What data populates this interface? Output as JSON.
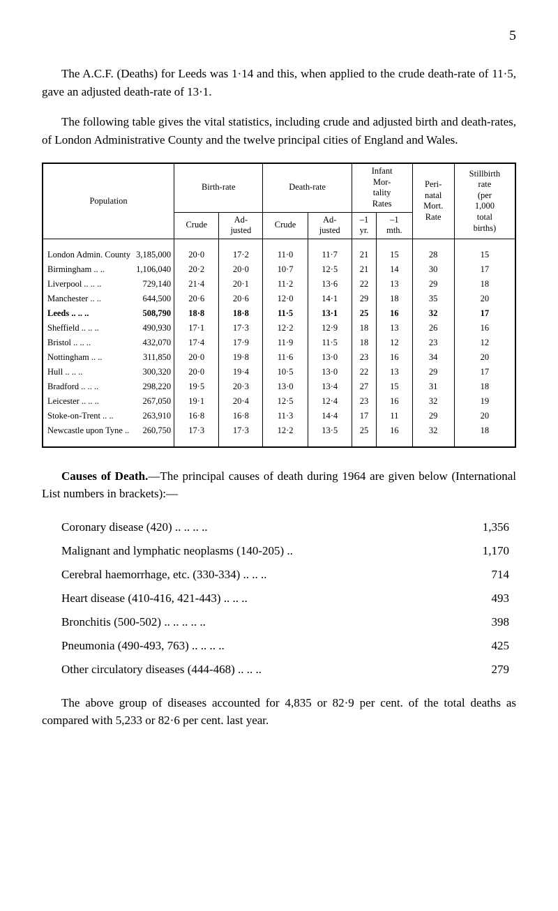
{
  "page_number": "5",
  "para1": "The A.C.F. (Deaths) for Leeds was 1·14 and this, when applied to the crude death-rate of 11·5, gave an adjusted death-rate of 13·1.",
  "para2": "The following table gives the vital statistics, including crude and adjusted birth and death-rates, of London Administrative County and the twelve principal cities of England and Wales.",
  "table": {
    "headers": {
      "population": "Population",
      "birth_rate": "Birth-rate",
      "death_rate": "Death-rate",
      "infant": "Infant\nMor-\ntality\nRates",
      "peri": "Peri-\nnatal\nMort.\nRate",
      "still": "Stillbirth\nrate\n(per\n1,000\ntotal\nbirths)",
      "crude": "Crude",
      "adjusted": "Ad-\njusted",
      "neg1yr": "–1\nyr.",
      "neg1mth": "–1\nmth."
    },
    "rows": [
      {
        "city": "London Admin. County",
        "pop": "3,185,000",
        "bc": "20·0",
        "ba": "17·2",
        "dc": "11·0",
        "da": "11·7",
        "iy": "21",
        "im": "15",
        "pn": "28",
        "sb": "15",
        "bold": false
      },
      {
        "city": "Birmingham   ..  ..",
        "pop": "1,106,040",
        "bc": "20·2",
        "ba": "20·0",
        "dc": "10·7",
        "da": "12·5",
        "iy": "21",
        "im": "14",
        "pn": "30",
        "sb": "17",
        "bold": false
      },
      {
        "city": "Liverpool ..   ..   ..",
        "pop": "729,140",
        "bc": "21·4",
        "ba": "20·1",
        "dc": "11·2",
        "da": "13·6",
        "iy": "22",
        "im": "13",
        "pn": "29",
        "sb": "18",
        "bold": false
      },
      {
        "city": "Manchester    ..   ..",
        "pop": "644,500",
        "bc": "20·6",
        "ba": "20·6",
        "dc": "12·0",
        "da": "14·1",
        "iy": "29",
        "im": "18",
        "pn": "35",
        "sb": "20",
        "bold": false
      },
      {
        "city": "Leeds    ..   ..   ..",
        "pop": "508,790",
        "bc": "18·8",
        "ba": "18·8",
        "dc": "11·5",
        "da": "13·1",
        "iy": "25",
        "im": "16",
        "pn": "32",
        "sb": "17",
        "bold": true
      },
      {
        "city": "Sheffield ..   ..   ..",
        "pop": "490,930",
        "bc": "17·1",
        "ba": "17·3",
        "dc": "12·2",
        "da": "12·9",
        "iy": "18",
        "im": "13",
        "pn": "26",
        "sb": "16",
        "bold": false
      },
      {
        "city": "Bristol   ..   ..   ..",
        "pop": "432,070",
        "bc": "17·4",
        "ba": "17·9",
        "dc": "11·9",
        "da": "11·5",
        "iy": "18",
        "im": "12",
        "pn": "23",
        "sb": "12",
        "bold": false
      },
      {
        "city": "Nottingham    ..   ..",
        "pop": "311,850",
        "bc": "20·0",
        "ba": "19·8",
        "dc": "11·6",
        "da": "13·0",
        "iy": "23",
        "im": "16",
        "pn": "34",
        "sb": "20",
        "bold": false
      },
      {
        "city": "Hull      ..   ..   ..",
        "pop": "300,320",
        "bc": "20·0",
        "ba": "19·4",
        "dc": "10·5",
        "da": "13·0",
        "iy": "22",
        "im": "13",
        "pn": "29",
        "sb": "17",
        "bold": false
      },
      {
        "city": "Bradford ..   ..   ..",
        "pop": "298,220",
        "bc": "19·5",
        "ba": "20·3",
        "dc": "13·0",
        "da": "13·4",
        "iy": "27",
        "im": "15",
        "pn": "31",
        "sb": "18",
        "bold": false
      },
      {
        "city": "Leicester ..   ..   ..",
        "pop": "267,050",
        "bc": "19·1",
        "ba": "20·4",
        "dc": "12·5",
        "da": "12·4",
        "iy": "23",
        "im": "16",
        "pn": "32",
        "sb": "19",
        "bold": false
      },
      {
        "city": "Stoke-on-Trent ..   ..",
        "pop": "263,910",
        "bc": "16·8",
        "ba": "16·8",
        "dc": "11·3",
        "da": "14·4",
        "iy": "17",
        "im": "11",
        "pn": "29",
        "sb": "20",
        "bold": false
      },
      {
        "city": "Newcastle upon Tyne  ..",
        "pop": "260,750",
        "bc": "17·3",
        "ba": "17·3",
        "dc": "12·2",
        "da": "13·5",
        "iy": "25",
        "im": "16",
        "pn": "32",
        "sb": "18",
        "bold": false
      }
    ]
  },
  "causes_heading": "Causes of Death.",
  "causes_text": "—The principal causes of death during 1964 are given below (International List numbers in brackets):—",
  "causes": [
    {
      "label": "Coronary disease (420)      ..      ..      ..      ..",
      "value": "1,356"
    },
    {
      "label": "Malignant and lymphatic neoplasms (140-205)          ..",
      "value": "1,170"
    },
    {
      "label": "Cerebral haemorrhage, etc. (330-334)     ..      ..      ..",
      "value": "714"
    },
    {
      "label": "Heart disease (410-416, 421-443)        ..      ..      ..",
      "value": "493"
    },
    {
      "label": "Bronchitis (500-502)         ..      ..      ..      ..      ..",
      "value": "398"
    },
    {
      "label": "Pneumonia (490-493, 763)             ..      ..      ..      ..",
      "value": "425"
    },
    {
      "label": "Other circulatory diseases (444-468)      ..      ..      ..",
      "value": "279"
    }
  ],
  "final_para": "The above group of diseases accounted for 4,835 or 82·9 per cent. of the total deaths as compared with 5,233 or 82·6 per cent. last year."
}
